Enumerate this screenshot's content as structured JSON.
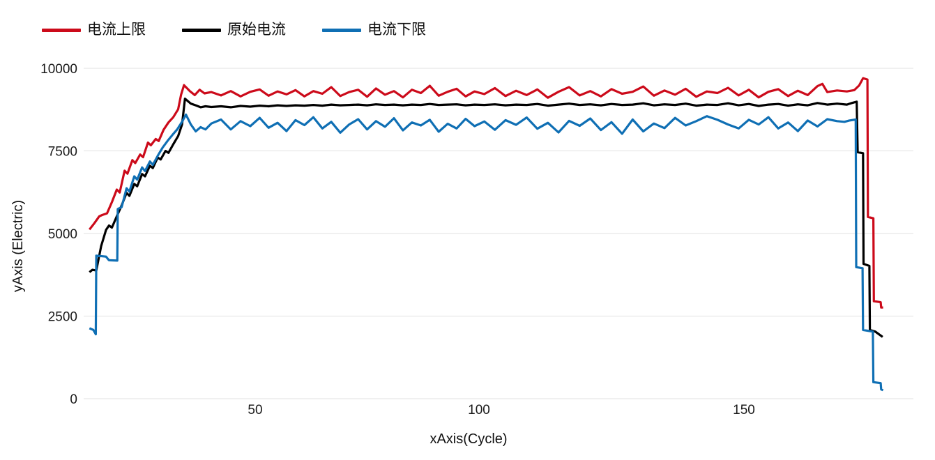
{
  "legend": {
    "items": [
      {
        "label": "电流上限",
        "color": "#cc0a1a"
      },
      {
        "label": "原始电流",
        "color": "#000000"
      },
      {
        "label": "电流下限",
        "color": "#0f6fb4"
      }
    ]
  },
  "chart_data": {
    "type": "line",
    "title": "",
    "xlabel": "xAxis(Cycle)",
    "ylabel": "yAxis (Electric)",
    "xlim": [
      14,
      180
    ],
    "ylim": [
      0,
      10000
    ],
    "grid": true,
    "legend_position": "top-left",
    "x_tick_labels": [
      "50",
      "100",
      "150"
    ],
    "y_tick_labels": [
      "0",
      "2500",
      "5000",
      "7500",
      "10000"
    ],
    "x_axis_anchors": [
      [
        16,
        0.007
      ],
      [
        50,
        0.2067
      ],
      [
        100,
        0.4765
      ],
      [
        150,
        0.7958
      ],
      [
        180,
        0.973
      ]
    ],
    "series": [
      {
        "id": "upper-limit",
        "name": "电流上限",
        "color": "#cc0a1a",
        "points": [
          [
            16,
            5120
          ],
          [
            17,
            5310
          ],
          [
            18,
            5520
          ],
          [
            18.6,
            5560
          ],
          [
            19.6,
            5610
          ],
          [
            20.6,
            5950
          ],
          [
            21.6,
            6330
          ],
          [
            22.2,
            6240
          ],
          [
            23.2,
            6900
          ],
          [
            23.8,
            6810
          ],
          [
            24.8,
            7220
          ],
          [
            25.4,
            7130
          ],
          [
            26.4,
            7390
          ],
          [
            27,
            7310
          ],
          [
            28,
            7750
          ],
          [
            28.6,
            7670
          ],
          [
            29.6,
            7860
          ],
          [
            30.2,
            7800
          ],
          [
            31.2,
            8140
          ],
          [
            32.2,
            8360
          ],
          [
            33.2,
            8520
          ],
          [
            34.2,
            8760
          ],
          [
            34.8,
            9200
          ],
          [
            35.4,
            9490
          ],
          [
            36.6,
            9310
          ],
          [
            37.6,
            9190
          ],
          [
            38.6,
            9350
          ],
          [
            39.6,
            9240
          ],
          [
            41,
            9280
          ],
          [
            43,
            9180
          ],
          [
            45,
            9310
          ],
          [
            47,
            9150
          ],
          [
            49,
            9290
          ],
          [
            51,
            9360
          ],
          [
            53,
            9170
          ],
          [
            55,
            9300
          ],
          [
            57,
            9210
          ],
          [
            59,
            9340
          ],
          [
            61,
            9150
          ],
          [
            63,
            9310
          ],
          [
            65,
            9230
          ],
          [
            67,
            9430
          ],
          [
            69,
            9160
          ],
          [
            71,
            9280
          ],
          [
            73,
            9350
          ],
          [
            75,
            9140
          ],
          [
            77,
            9390
          ],
          [
            79,
            9200
          ],
          [
            81,
            9310
          ],
          [
            83,
            9120
          ],
          [
            85,
            9350
          ],
          [
            87,
            9250
          ],
          [
            89,
            9470
          ],
          [
            91,
            9170
          ],
          [
            93,
            9290
          ],
          [
            95,
            9380
          ],
          [
            97,
            9150
          ],
          [
            99,
            9300
          ],
          [
            101,
            9220
          ],
          [
            103,
            9400
          ],
          [
            105,
            9160
          ],
          [
            107,
            9320
          ],
          [
            109,
            9190
          ],
          [
            111,
            9360
          ],
          [
            113,
            9110
          ],
          [
            115,
            9290
          ],
          [
            117,
            9430
          ],
          [
            119,
            9180
          ],
          [
            121,
            9310
          ],
          [
            123,
            9150
          ],
          [
            125,
            9370
          ],
          [
            127,
            9230
          ],
          [
            129,
            9290
          ],
          [
            131,
            9450
          ],
          [
            133,
            9170
          ],
          [
            135,
            9330
          ],
          [
            137,
            9200
          ],
          [
            139,
            9380
          ],
          [
            141,
            9140
          ],
          [
            143,
            9300
          ],
          [
            145,
            9250
          ],
          [
            147,
            9410
          ],
          [
            149,
            9180
          ],
          [
            151,
            9350
          ],
          [
            153,
            9120
          ],
          [
            155,
            9290
          ],
          [
            157,
            9370
          ],
          [
            159,
            9160
          ],
          [
            161,
            9320
          ],
          [
            163,
            9190
          ],
          [
            165,
            9460
          ],
          [
            166,
            9530
          ],
          [
            167,
            9280
          ],
          [
            169,
            9330
          ],
          [
            171,
            9300
          ],
          [
            172.5,
            9340
          ],
          [
            173.5,
            9480
          ],
          [
            174.3,
            9700
          ],
          [
            175.2,
            9660
          ],
          [
            175.3,
            5500
          ],
          [
            176.4,
            5460
          ],
          [
            176.5,
            2950
          ],
          [
            177.9,
            2920
          ],
          [
            178,
            2760
          ],
          [
            178.4,
            2760
          ]
        ]
      },
      {
        "id": "original",
        "name": "原始电流",
        "color": "#000000",
        "points": [
          [
            16,
            3830
          ],
          [
            16.6,
            3900
          ],
          [
            17.4,
            3880
          ],
          [
            18.4,
            4620
          ],
          [
            19.4,
            5110
          ],
          [
            20,
            5240
          ],
          [
            20.6,
            5180
          ],
          [
            21.6,
            5520
          ],
          [
            22.6,
            5850
          ],
          [
            23.6,
            6230
          ],
          [
            24.2,
            6140
          ],
          [
            25.2,
            6500
          ],
          [
            25.8,
            6430
          ],
          [
            26.8,
            6800
          ],
          [
            27.4,
            6730
          ],
          [
            28.4,
            7050
          ],
          [
            29,
            6980
          ],
          [
            30,
            7300
          ],
          [
            30.6,
            7240
          ],
          [
            31.6,
            7500
          ],
          [
            32.2,
            7440
          ],
          [
            33.2,
            7700
          ],
          [
            34.2,
            7950
          ],
          [
            35,
            8300
          ],
          [
            35.6,
            9080
          ],
          [
            36.8,
            8930
          ],
          [
            37.8,
            8880
          ],
          [
            38.8,
            8820
          ],
          [
            39.8,
            8850
          ],
          [
            41,
            8830
          ],
          [
            43,
            8850
          ],
          [
            45,
            8820
          ],
          [
            47,
            8860
          ],
          [
            49,
            8840
          ],
          [
            51,
            8870
          ],
          [
            53,
            8850
          ],
          [
            55,
            8880
          ],
          [
            57,
            8860
          ],
          [
            59,
            8880
          ],
          [
            61,
            8870
          ],
          [
            63,
            8890
          ],
          [
            65,
            8870
          ],
          [
            67,
            8900
          ],
          [
            69,
            8880
          ],
          [
            71,
            8890
          ],
          [
            73,
            8900
          ],
          [
            75,
            8880
          ],
          [
            77,
            8910
          ],
          [
            79,
            8890
          ],
          [
            81,
            8900
          ],
          [
            83,
            8880
          ],
          [
            85,
            8900
          ],
          [
            87,
            8890
          ],
          [
            89,
            8920
          ],
          [
            91,
            8890
          ],
          [
            93,
            8900
          ],
          [
            95,
            8910
          ],
          [
            97,
            8880
          ],
          [
            99,
            8900
          ],
          [
            101,
            8890
          ],
          [
            103,
            8910
          ],
          [
            105,
            8880
          ],
          [
            107,
            8900
          ],
          [
            109,
            8890
          ],
          [
            111,
            8920
          ],
          [
            113,
            8870
          ],
          [
            115,
            8900
          ],
          [
            117,
            8930
          ],
          [
            119,
            8890
          ],
          [
            121,
            8910
          ],
          [
            123,
            8880
          ],
          [
            125,
            8920
          ],
          [
            127,
            8890
          ],
          [
            129,
            8900
          ],
          [
            131,
            8940
          ],
          [
            133,
            8880
          ],
          [
            135,
            8910
          ],
          [
            137,
            8890
          ],
          [
            139,
            8930
          ],
          [
            141,
            8870
          ],
          [
            143,
            8900
          ],
          [
            145,
            8890
          ],
          [
            147,
            8940
          ],
          [
            149,
            8880
          ],
          [
            151,
            8920
          ],
          [
            153,
            8860
          ],
          [
            155,
            8900
          ],
          [
            157,
            8920
          ],
          [
            159,
            8870
          ],
          [
            161,
            8910
          ],
          [
            163,
            8880
          ],
          [
            165,
            8950
          ],
          [
            167,
            8900
          ],
          [
            169,
            8930
          ],
          [
            171,
            8900
          ],
          [
            172,
            8950
          ],
          [
            173,
            8990
          ],
          [
            173.2,
            7460
          ],
          [
            174.3,
            7430
          ],
          [
            174.4,
            4080
          ],
          [
            175.6,
            4020
          ],
          [
            175.7,
            2080
          ],
          [
            176.8,
            2030
          ],
          [
            178.3,
            1870
          ]
        ]
      },
      {
        "id": "lower-limit",
        "name": "电流下限",
        "color": "#0f6fb4",
        "points": [
          [
            16,
            2130
          ],
          [
            16.8,
            2080
          ],
          [
            17.3,
            1950
          ],
          [
            17.4,
            4330
          ],
          [
            19.4,
            4300
          ],
          [
            20,
            4190
          ],
          [
            21.7,
            4180
          ],
          [
            21.8,
            5740
          ],
          [
            22.6,
            5800
          ],
          [
            23.6,
            6370
          ],
          [
            24.2,
            6270
          ],
          [
            25.2,
            6730
          ],
          [
            25.8,
            6630
          ],
          [
            26.8,
            7000
          ],
          [
            27.4,
            6890
          ],
          [
            28.4,
            7180
          ],
          [
            29,
            7080
          ],
          [
            30,
            7350
          ],
          [
            31,
            7600
          ],
          [
            32,
            7800
          ],
          [
            33,
            7980
          ],
          [
            34,
            8150
          ],
          [
            35,
            8380
          ],
          [
            35.8,
            8600
          ],
          [
            36.8,
            8300
          ],
          [
            37.8,
            8090
          ],
          [
            38.8,
            8220
          ],
          [
            39.8,
            8150
          ],
          [
            41,
            8330
          ],
          [
            43,
            8450
          ],
          [
            45,
            8150
          ],
          [
            47,
            8400
          ],
          [
            49,
            8250
          ],
          [
            51,
            8500
          ],
          [
            53,
            8200
          ],
          [
            55,
            8350
          ],
          [
            57,
            8100
          ],
          [
            59,
            8430
          ],
          [
            61,
            8280
          ],
          [
            63,
            8520
          ],
          [
            65,
            8180
          ],
          [
            67,
            8380
          ],
          [
            69,
            8050
          ],
          [
            71,
            8300
          ],
          [
            73,
            8460
          ],
          [
            75,
            8150
          ],
          [
            77,
            8400
          ],
          [
            79,
            8230
          ],
          [
            81,
            8490
          ],
          [
            83,
            8120
          ],
          [
            85,
            8360
          ],
          [
            87,
            8270
          ],
          [
            89,
            8440
          ],
          [
            91,
            8080
          ],
          [
            93,
            8320
          ],
          [
            95,
            8180
          ],
          [
            97,
            8470
          ],
          [
            99,
            8250
          ],
          [
            101,
            8390
          ],
          [
            103,
            8140
          ],
          [
            105,
            8430
          ],
          [
            107,
            8290
          ],
          [
            109,
            8510
          ],
          [
            111,
            8170
          ],
          [
            113,
            8350
          ],
          [
            115,
            8060
          ],
          [
            117,
            8410
          ],
          [
            119,
            8260
          ],
          [
            121,
            8480
          ],
          [
            123,
            8130
          ],
          [
            125,
            8370
          ],
          [
            127,
            8020
          ],
          [
            129,
            8450
          ],
          [
            131,
            8090
          ],
          [
            133,
            8330
          ],
          [
            135,
            8190
          ],
          [
            137,
            8500
          ],
          [
            139,
            8270
          ],
          [
            141,
            8400
          ],
          [
            143,
            8550
          ],
          [
            145,
            8440
          ],
          [
            147,
            8300
          ],
          [
            149,
            8180
          ],
          [
            151,
            8440
          ],
          [
            153,
            8300
          ],
          [
            155,
            8520
          ],
          [
            157,
            8180
          ],
          [
            159,
            8360
          ],
          [
            161,
            8100
          ],
          [
            163,
            8420
          ],
          [
            165,
            8240
          ],
          [
            167,
            8460
          ],
          [
            169,
            8400
          ],
          [
            170.5,
            8380
          ],
          [
            171.5,
            8420
          ],
          [
            172.8,
            8450
          ],
          [
            172.9,
            3980
          ],
          [
            174.2,
            3950
          ],
          [
            174.3,
            2080
          ],
          [
            176.3,
            2030
          ],
          [
            176.4,
            500
          ],
          [
            177.9,
            470
          ],
          [
            178,
            280
          ],
          [
            178.4,
            260
          ]
        ]
      }
    ]
  }
}
